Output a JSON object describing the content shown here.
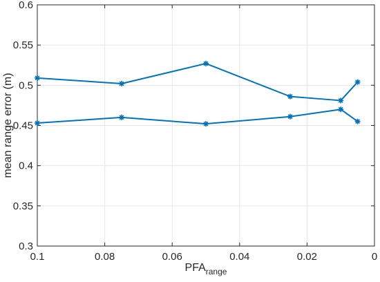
{
  "chart_data": {
    "type": "line",
    "title": "",
    "xlabel": "PFA",
    "xlabel_subscript": "range",
    "ylabel": "mean range error (m)",
    "xlim": [
      0,
      0.1
    ],
    "x_reversed": true,
    "ylim": [
      0.3,
      0.6
    ],
    "x_ticks": [
      0.1,
      0.08,
      0.06,
      0.04,
      0.02,
      0
    ],
    "x_tick_labels": [
      "0.1",
      "0.08",
      "0.06",
      "0.04",
      "0.02",
      "0"
    ],
    "y_ticks": [
      0.3,
      0.35,
      0.4,
      0.45,
      0.5,
      0.55,
      0.6
    ],
    "y_tick_labels": [
      "0.3",
      "0.35",
      "0.4",
      "0.45",
      "0.5",
      "0.55",
      "0.6"
    ],
    "grid": true,
    "marker": "asterisk",
    "series_color": "#0072BD",
    "grid_color": "#e6e6e6",
    "axis_color": "#262626",
    "series": [
      {
        "x": [
          0.1,
          0.075,
          0.05,
          0.025,
          0.01,
          0.005
        ],
        "values": [
          0.509,
          0.502,
          0.527,
          0.486,
          0.481,
          0.504
        ]
      },
      {
        "x": [
          0.1,
          0.075,
          0.05,
          0.025,
          0.01,
          0.005
        ],
        "values": [
          0.453,
          0.46,
          0.452,
          0.461,
          0.47,
          0.455
        ]
      }
    ]
  }
}
